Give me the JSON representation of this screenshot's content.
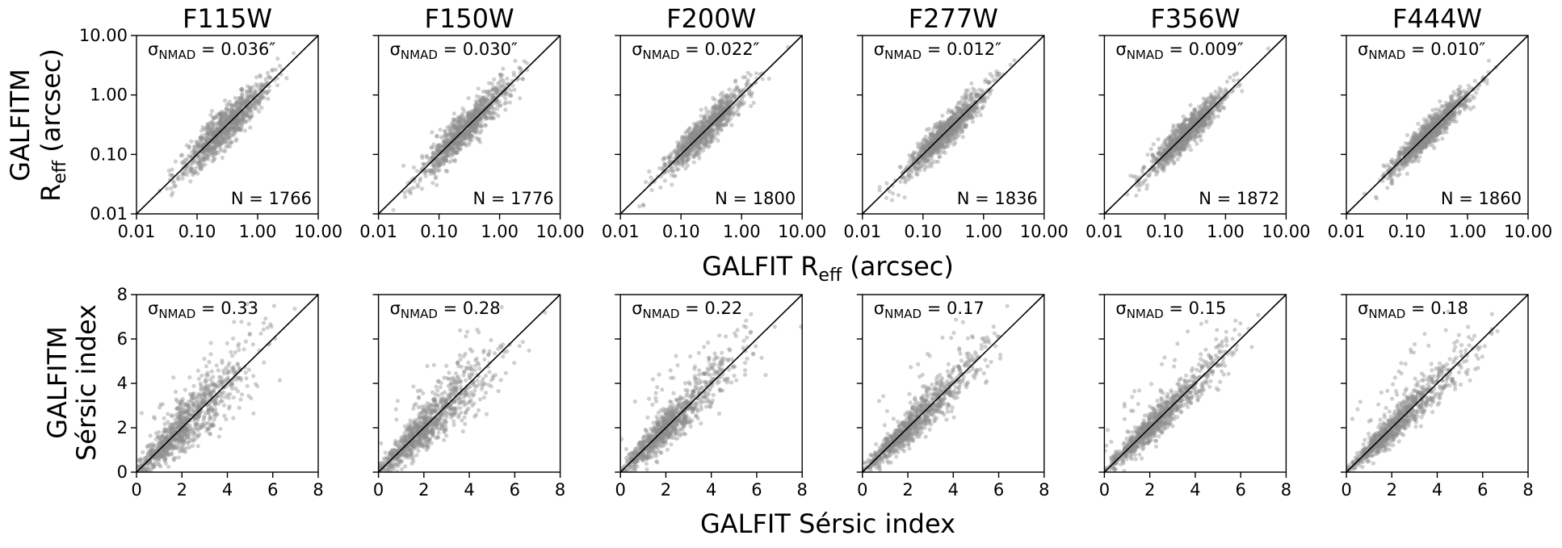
{
  "figure": {
    "top_xlabel_main": "GALFIT R",
    "top_xlabel_sub": "eff",
    "top_xlabel_unit": " (arcsec)",
    "top_ylabel_line1": "GALFITM",
    "top_ylabel_main": "R",
    "top_ylabel_sub": "eff",
    "top_ylabel_unit": " (arcsec)",
    "bottom_xlabel": "GALFIT Sérsic index",
    "bottom_ylabel_line1": "GALFITM",
    "bottom_ylabel_line2": "Sérsic index",
    "sigma_symbol": "σ",
    "sigma_sub": "NMAD",
    "eq": " = ",
    "n_prefix": "N = "
  },
  "chart_data": [
    {
      "type": "scatter",
      "row": "effective-radius",
      "filter": "F115W",
      "xscale": "log",
      "yscale": "log",
      "xlim": [
        0.01,
        10.0
      ],
      "ylim": [
        0.01,
        10.0
      ],
      "xticks": [
        "0.01",
        "0.10",
        "1.00",
        "10.00"
      ],
      "yticks": [
        "0.01",
        "0.10",
        "1.00",
        "10.00"
      ],
      "sigma_nmad": "0.036″",
      "n": "1766",
      "identity_line": true,
      "series": [
        {
          "count": 1766,
          "median": 0.28,
          "scatter_dex": 0.36
        }
      ]
    },
    {
      "type": "scatter",
      "row": "effective-radius",
      "filter": "F150W",
      "xscale": "log",
      "yscale": "log",
      "xlim": [
        0.01,
        10.0
      ],
      "ylim": [
        0.01,
        10.0
      ],
      "xticks": [
        "0.01",
        "0.10",
        "1.00",
        "10.00"
      ],
      "yticks": [
        "0.01",
        "0.10",
        "1.00",
        "10.00"
      ],
      "sigma_nmad": "0.030″",
      "n": "1776",
      "identity_line": true,
      "series": [
        {
          "count": 1776,
          "median": 0.26,
          "scatter_dex": 0.36
        }
      ]
    },
    {
      "type": "scatter",
      "row": "effective-radius",
      "filter": "F200W",
      "xscale": "log",
      "yscale": "log",
      "xlim": [
        0.01,
        10.0
      ],
      "ylim": [
        0.01,
        10.0
      ],
      "xticks": [
        "0.01",
        "0.10",
        "1.00",
        "10.00"
      ],
      "yticks": [
        "0.01",
        "0.10",
        "1.00",
        "10.00"
      ],
      "sigma_nmad": "0.022″",
      "n": "1800",
      "identity_line": true,
      "series": [
        {
          "count": 1800,
          "median": 0.25,
          "scatter_dex": 0.34
        }
      ]
    },
    {
      "type": "scatter",
      "row": "effective-radius",
      "filter": "F277W",
      "xscale": "log",
      "yscale": "log",
      "xlim": [
        0.01,
        10.0
      ],
      "ylim": [
        0.01,
        10.0
      ],
      "xticks": [
        "0.01",
        "0.10",
        "1.00",
        "10.00"
      ],
      "yticks": [
        "0.01",
        "0.10",
        "1.00",
        "10.00"
      ],
      "sigma_nmad": "0.012″",
      "n": "1836",
      "identity_line": true,
      "series": [
        {
          "count": 1836,
          "median": 0.24,
          "scatter_dex": 0.34
        }
      ]
    },
    {
      "type": "scatter",
      "row": "effective-radius",
      "filter": "F356W",
      "xscale": "log",
      "yscale": "log",
      "xlim": [
        0.01,
        10.0
      ],
      "ylim": [
        0.01,
        10.0
      ],
      "xticks": [
        "0.01",
        "0.10",
        "1.00",
        "10.00"
      ],
      "yticks": [
        "0.01",
        "0.10",
        "1.00",
        "10.00"
      ],
      "sigma_nmad": "0.009″",
      "n": "1872",
      "identity_line": true,
      "series": [
        {
          "count": 1872,
          "median": 0.23,
          "scatter_dex": 0.33
        }
      ]
    },
    {
      "type": "scatter",
      "row": "effective-radius",
      "filter": "F444W",
      "xscale": "log",
      "yscale": "log",
      "xlim": [
        0.01,
        10.0
      ],
      "ylim": [
        0.01,
        10.0
      ],
      "xticks": [
        "0.01",
        "0.10",
        "1.00",
        "10.00"
      ],
      "yticks": [
        "0.01",
        "0.10",
        "1.00",
        "10.00"
      ],
      "sigma_nmad": "0.010″",
      "n": "1860",
      "identity_line": true,
      "series": [
        {
          "count": 1860,
          "median": 0.24,
          "scatter_dex": 0.33
        }
      ]
    },
    {
      "type": "scatter",
      "row": "sersic-index",
      "filter": "F115W",
      "xscale": "linear",
      "yscale": "linear",
      "xlim": [
        0,
        8
      ],
      "ylim": [
        0,
        8
      ],
      "xticks": [
        "0",
        "2",
        "4",
        "6",
        "8"
      ],
      "yticks": [
        "0",
        "2",
        "4",
        "6",
        "8"
      ],
      "sigma_nmad": "0.33",
      "identity_line": true,
      "series": [
        {
          "count": 1766,
          "median": 1.6,
          "scatter": 0.9
        }
      ]
    },
    {
      "type": "scatter",
      "row": "sersic-index",
      "filter": "F150W",
      "xscale": "linear",
      "yscale": "linear",
      "xlim": [
        0,
        8
      ],
      "ylim": [
        0,
        8
      ],
      "xticks": [
        "0",
        "2",
        "4",
        "6",
        "8"
      ],
      "yticks": [
        "0",
        "2",
        "4",
        "6",
        "8"
      ],
      "sigma_nmad": "0.28",
      "identity_line": true,
      "series": [
        {
          "count": 1776,
          "median": 1.6,
          "scatter": 0.8
        }
      ]
    },
    {
      "type": "scatter",
      "row": "sersic-index",
      "filter": "F200W",
      "xscale": "linear",
      "yscale": "linear",
      "xlim": [
        0,
        8
      ],
      "ylim": [
        0,
        8
      ],
      "xticks": [
        "0",
        "2",
        "4",
        "6",
        "8"
      ],
      "yticks": [
        "0",
        "2",
        "4",
        "6",
        "8"
      ],
      "sigma_nmad": "0.22",
      "identity_line": true,
      "series": [
        {
          "count": 1800,
          "median": 1.7,
          "scatter": 0.7
        }
      ]
    },
    {
      "type": "scatter",
      "row": "sersic-index",
      "filter": "F277W",
      "xscale": "linear",
      "yscale": "linear",
      "xlim": [
        0,
        8
      ],
      "ylim": [
        0,
        8
      ],
      "xticks": [
        "0",
        "2",
        "4",
        "6",
        "8"
      ],
      "yticks": [
        "0",
        "2",
        "4",
        "6",
        "8"
      ],
      "sigma_nmad": "0.17",
      "identity_line": true,
      "series": [
        {
          "count": 1836,
          "median": 1.8,
          "scatter": 0.6
        }
      ]
    },
    {
      "type": "scatter",
      "row": "sersic-index",
      "filter": "F356W",
      "xscale": "linear",
      "yscale": "linear",
      "xlim": [
        0,
        8
      ],
      "ylim": [
        0,
        8
      ],
      "xticks": [
        "0",
        "2",
        "4",
        "6",
        "8"
      ],
      "yticks": [
        "0",
        "2",
        "4",
        "6",
        "8"
      ],
      "sigma_nmad": "0.15",
      "identity_line": true,
      "series": [
        {
          "count": 1872,
          "median": 1.8,
          "scatter": 0.5
        }
      ]
    },
    {
      "type": "scatter",
      "row": "sersic-index",
      "filter": "F444W",
      "xscale": "linear",
      "yscale": "linear",
      "xlim": [
        0,
        8
      ],
      "ylim": [
        0,
        8
      ],
      "xticks": [
        "0",
        "2",
        "4",
        "6",
        "8"
      ],
      "yticks": [
        "0",
        "2",
        "4",
        "6",
        "8"
      ],
      "sigma_nmad": "0.18",
      "identity_line": true,
      "series": [
        {
          "count": 1860,
          "median": 1.8,
          "scatter": 0.55
        }
      ]
    }
  ],
  "colors": {
    "points": "#8c8c8c",
    "axes": "#000000"
  }
}
